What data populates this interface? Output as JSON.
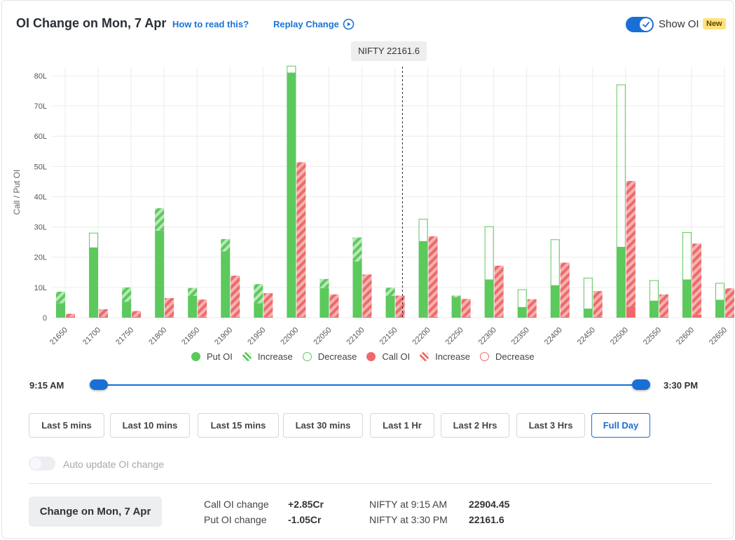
{
  "header": {
    "title": "OI Change on Mon, 7 Apr",
    "how_to_read": "How to read this?",
    "replay": "Replay Change",
    "show_oi_label": "Show OI",
    "new_badge": "New"
  },
  "tooltip": {
    "label": "NIFTY 22161.6"
  },
  "colors": {
    "put": "#5cc95c",
    "put_light": "#b9e8b9",
    "call": "#ee6a6a",
    "call_light": "#f6b3b3",
    "accent": "#1a6fd4"
  },
  "chart_data": {
    "type": "bar",
    "ylabel": "Call / Put OI",
    "xlabel": "",
    "ylim": [
      0,
      83
    ],
    "yticks": [
      "0",
      "10L",
      "20L",
      "30L",
      "40L",
      "50L",
      "60L",
      "70L",
      "80L"
    ],
    "grid": true,
    "spot_marker": 22161.6,
    "categories": [
      "21650",
      "21700",
      "21750",
      "21800",
      "21850",
      "21900",
      "21950",
      "22000",
      "22050",
      "22100",
      "22150",
      "22200",
      "22250",
      "22300",
      "22350",
      "22400",
      "22450",
      "22500",
      "22550",
      "22600",
      "22650"
    ],
    "series": [
      {
        "name": "Put OI",
        "values": [
          4.8,
          23.2,
          5.3,
          28.8,
          7.2,
          21.9,
          4.8,
          81.0,
          9.8,
          18.6,
          7.2,
          25.3,
          6.8,
          12.6,
          3.5,
          10.7,
          3.0,
          23.4,
          5.6,
          12.6,
          5.9
        ]
      },
      {
        "name": "Put OI Increase",
        "values": [
          3.8,
          0,
          4.7,
          7.4,
          2.6,
          4.1,
          6.3,
          0,
          3.0,
          7.9,
          2.7,
          0,
          0.5,
          0,
          0,
          0,
          0,
          0,
          0,
          0,
          0
        ]
      },
      {
        "name": "Put OI Decrease",
        "values": [
          0,
          4.9,
          0,
          0,
          0,
          0,
          0,
          2.3,
          0,
          0,
          0,
          7.4,
          0,
          17.6,
          5.9,
          15.2,
          10.2,
          53.7,
          6.8,
          15.7,
          5.6
        ]
      },
      {
        "name": "Call OI",
        "values": [
          0.3,
          0.3,
          0.3,
          0.3,
          0.3,
          0.3,
          0.3,
          0.3,
          0.3,
          0.3,
          0.3,
          0.3,
          0.3,
          0.3,
          0.3,
          0.3,
          0.3,
          3.6,
          0.3,
          1.0,
          0.3
        ]
      },
      {
        "name": "Call OI Increase",
        "values": [
          1.0,
          2.5,
          1.9,
          6.2,
          5.7,
          13.6,
          7.8,
          51.1,
          7.4,
          14.0,
          7.0,
          26.6,
          5.9,
          16.9,
          5.8,
          17.9,
          8.5,
          41.6,
          7.4,
          23.5,
          9.4
        ]
      },
      {
        "name": "Call OI Decrease",
        "values": [
          0,
          0,
          0,
          0,
          0,
          0,
          0,
          0,
          0,
          0,
          0,
          0,
          0,
          0,
          0,
          0,
          0,
          0,
          0,
          0,
          0
        ]
      }
    ]
  },
  "legend": [
    {
      "label": "Put OI",
      "kind": "solid",
      "color": "#5cc95c"
    },
    {
      "label": "Increase",
      "kind": "hatch",
      "color": "#5cc95c"
    },
    {
      "label": "Decrease",
      "kind": "outline",
      "color": "#5cc95c"
    },
    {
      "label": "Call OI",
      "kind": "solid",
      "color": "#ee6a6a"
    },
    {
      "label": "Increase",
      "kind": "hatch",
      "color": "#ee6a6a"
    },
    {
      "label": "Decrease",
      "kind": "outline",
      "color": "#ee6a6a"
    }
  ],
  "slider": {
    "start": "9:15 AM",
    "end": "3:30 PM"
  },
  "ranges": [
    "Last 5 mins",
    "Last 10 mins",
    "Last 15 mins",
    "Last 30 mins",
    "Last 1 Hr",
    "Last 2 Hrs",
    "Last 3 Hrs",
    "Full Day"
  ],
  "active_range": "Full Day",
  "auto_update": "Auto update OI change",
  "footer": {
    "change_button": "Change on Mon, 7 Apr",
    "call_oi_change_label": "Call OI change",
    "call_oi_change_value": "+2.85Cr",
    "put_oi_change_label": "Put OI change",
    "put_oi_change_value": "-1.05Cr",
    "nifty_start_label": "NIFTY at 9:15 AM",
    "nifty_start_value": "22904.45",
    "nifty_end_label": "NIFTY at 3:30 PM",
    "nifty_end_value": "22161.6"
  }
}
